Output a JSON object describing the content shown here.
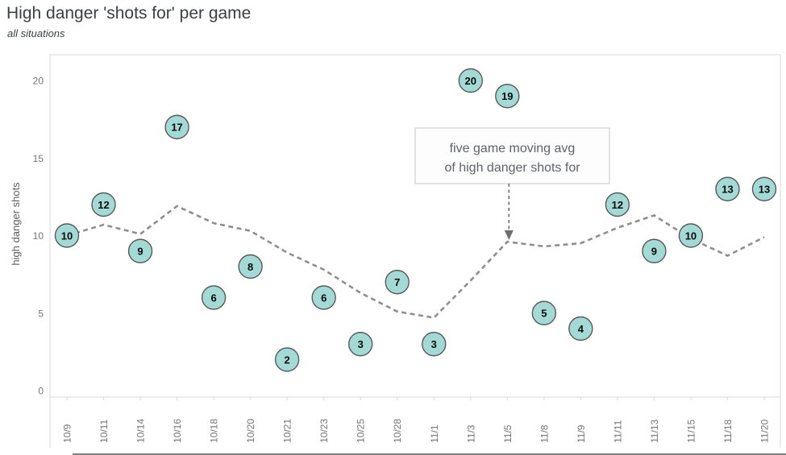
{
  "header": {
    "title": "High danger 'shots for' per game",
    "subtitle": "all situations"
  },
  "chart_data": {
    "type": "scatter",
    "title": "High danger 'shots for' per game",
    "subtitle": "all situations",
    "xlabel": "",
    "ylabel": "high danger shots",
    "yticks": [
      0,
      5,
      10,
      15,
      20
    ],
    "ylim": [
      0,
      22
    ],
    "grid": false,
    "legend_position": "none",
    "categories": [
      "10/9",
      "10/11",
      "10/14",
      "10/16",
      "10/18",
      "10/20",
      "10/21",
      "10/23",
      "10/25",
      "10/28",
      "11/1",
      "11/3",
      "11/5",
      "11/8",
      "11/9",
      "11/11",
      "11/13",
      "11/15",
      "11/18",
      "11/20"
    ],
    "series": [
      {
        "name": "high danger shots for",
        "style": "labeled-circle-markers",
        "values": [
          10,
          12,
          9,
          17,
          6,
          8,
          2,
          6,
          3,
          7,
          3,
          20,
          19,
          5,
          4,
          12,
          9,
          10,
          13,
          13
        ]
      },
      {
        "name": "five game moving avg of high danger shots for",
        "style": "dashed-line",
        "values": [
          10.0,
          10.7,
          10.1,
          11.9,
          10.8,
          10.3,
          8.9,
          7.8,
          6.3,
          5.1,
          4.7,
          7.1,
          9.6,
          9.3,
          9.5,
          10.5,
          11.3,
          9.8,
          8.7,
          9.9
        ]
      }
    ],
    "annotation": {
      "line1": "five game moving avg",
      "line2": "of high danger shots for",
      "points_to_category": "11/5"
    },
    "colors": {
      "marker_fill": "#a4dad6",
      "marker_stroke": "#595959",
      "ma_line": "#8f8f8f",
      "axis_border": "#d9d9d9",
      "tick_text": "#757575",
      "annotation_text": "#5f6368",
      "annotation_border": "#c6c6c6",
      "annotation_fill": "#fdfdfd",
      "arrow": "#6d6d6d",
      "title_text": "#3c4043"
    }
  }
}
